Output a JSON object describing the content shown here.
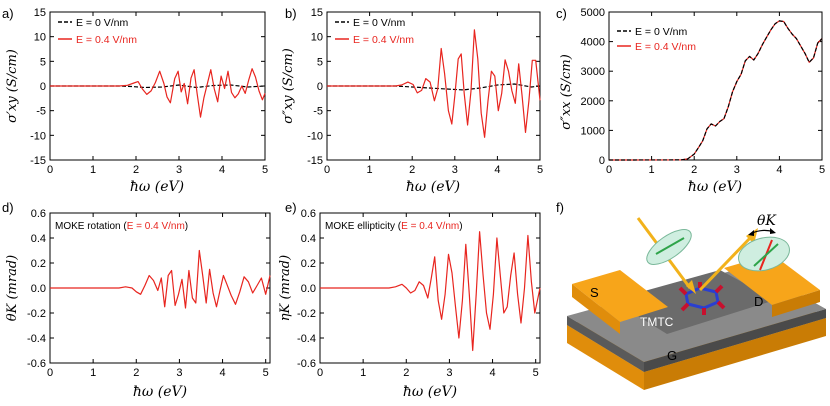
{
  "chart_data": [
    {
      "id": "a",
      "panel_label": "a)",
      "type": "line",
      "xlabel": "ħω (eV)",
      "ylabel": "σ′xy (S/cm)",
      "xlim": [
        0,
        5
      ],
      "ylim": [
        -15,
        15
      ],
      "xticks": [
        "0",
        "1",
        "2",
        "3",
        "4",
        "5"
      ],
      "yticks": [
        "-15",
        "-10",
        "-5",
        "0",
        "5",
        "10",
        "15"
      ],
      "legend": [
        "E = 0 V/nm",
        "E = 0.4 V/nm"
      ],
      "series": [
        {
          "name": "E = 0 V/nm",
          "color": "#000000",
          "dash": true,
          "x": [
            0,
            1.6,
            1.9,
            2.2,
            2.6,
            3.0,
            3.4,
            3.8,
            4.2,
            4.6,
            5.0
          ],
          "y": [
            0,
            0,
            -0.1,
            -0.3,
            -0.2,
            0.2,
            -0.3,
            0.1,
            0.2,
            -0.2,
            0
          ]
        },
        {
          "name": "E = 0.4 V/nm",
          "color": "#e8251f",
          "x": [
            0,
            1.6,
            1.8,
            1.95,
            2.05,
            2.15,
            2.25,
            2.35,
            2.45,
            2.55,
            2.65,
            2.72,
            2.8,
            2.9,
            2.98,
            3.05,
            3.12,
            3.2,
            3.28,
            3.35,
            3.42,
            3.5,
            3.58,
            3.66,
            3.74,
            3.82,
            3.9,
            3.98,
            4.06,
            4.14,
            4.22,
            4.3,
            4.38,
            4.46,
            4.54,
            4.62,
            4.7,
            4.78,
            4.86,
            4.94,
            5.0
          ],
          "y": [
            0,
            0,
            0.15,
            0.6,
            0.9,
            -0.6,
            -1.7,
            -1.0,
            0.7,
            3.0,
            0.5,
            -2.2,
            -3.4,
            1.5,
            3.0,
            -1.2,
            0.5,
            -3.6,
            1.6,
            3.3,
            -1.5,
            -6.3,
            -2.4,
            0.5,
            3.3,
            -0.6,
            -3.2,
            2.0,
            -0.5,
            3.0,
            -1.3,
            -2.4,
            -1.6,
            0.0,
            -1.5,
            1.2,
            3.5,
            1.8,
            -1.0,
            -2.8,
            -1.5
          ]
        }
      ]
    },
    {
      "id": "b",
      "panel_label": "b)",
      "type": "line",
      "xlabel": "ħω (eV)",
      "ylabel": "σ″xy (S/cm)",
      "xlim": [
        0,
        5
      ],
      "ylim": [
        -15,
        15
      ],
      "xticks": [
        "0",
        "1",
        "2",
        "3",
        "4",
        "5"
      ],
      "yticks": [
        "-15",
        "-10",
        "-5",
        "0",
        "5",
        "10",
        "15"
      ],
      "legend": [
        "E = 0 V/nm",
        "E = 0.4 V/nm"
      ],
      "series": [
        {
          "name": "E = 0 V/nm",
          "color": "#000000",
          "dash": true,
          "x": [
            0,
            1.6,
            2.0,
            2.4,
            2.8,
            3.2,
            3.6,
            4.0,
            4.4,
            4.8,
            5.0
          ],
          "y": [
            0,
            0,
            -0.2,
            -0.4,
            -0.6,
            -0.8,
            -0.4,
            0.2,
            0.4,
            -0.2,
            0
          ]
        },
        {
          "name": "E = 0.4 V/nm",
          "color": "#e8251f",
          "x": [
            0,
            1.6,
            1.75,
            1.9,
            2.02,
            2.12,
            2.22,
            2.32,
            2.42,
            2.52,
            2.6,
            2.68,
            2.76,
            2.85,
            2.93,
            3.0,
            3.08,
            3.15,
            3.22,
            3.3,
            3.38,
            3.46,
            3.54,
            3.62,
            3.7,
            3.78,
            3.86,
            3.94,
            4.02,
            4.1,
            4.18,
            4.26,
            4.34,
            4.42,
            4.5,
            4.58,
            4.66,
            4.74,
            4.82,
            4.9,
            5.0
          ],
          "y": [
            0,
            0,
            0.2,
            0.8,
            0.3,
            -1.4,
            -0.9,
            1.5,
            0.8,
            -3.0,
            -0.5,
            7.6,
            2.5,
            -5.0,
            -7.7,
            -2.0,
            5.5,
            6.5,
            -1.5,
            -7.9,
            -1.0,
            11.4,
            5.5,
            -5.5,
            -10.4,
            -3.0,
            3.0,
            2.0,
            -5.0,
            -1.5,
            5.3,
            3.0,
            -1.0,
            -3.5,
            4.5,
            -2.0,
            -9.4,
            -3.0,
            5.2,
            5.2,
            -2.9
          ]
        }
      ]
    },
    {
      "id": "c",
      "panel_label": "c)",
      "type": "line",
      "xlabel": "ħω (eV)",
      "ylabel": "σ″xx (S/cm)",
      "xlim": [
        0,
        5
      ],
      "ylim": [
        0,
        5000
      ],
      "xticks": [
        "0",
        "1",
        "2",
        "3",
        "4",
        "5"
      ],
      "yticks": [
        "0",
        "1000",
        "2000",
        "3000",
        "4000",
        "5000"
      ],
      "legend": [
        "E = 0 V/nm",
        "E = 0.4 V/nm"
      ],
      "series": [
        {
          "name": "E = 0.4 V/nm",
          "color": "#e8251f",
          "x": [
            0,
            1.7,
            1.85,
            2.0,
            2.1,
            2.2,
            2.3,
            2.4,
            2.5,
            2.6,
            2.7,
            2.8,
            2.9,
            3.0,
            3.1,
            3.2,
            3.3,
            3.4,
            3.5,
            3.6,
            3.7,
            3.8,
            3.9,
            4.0,
            4.1,
            4.2,
            4.3,
            4.4,
            4.5,
            4.6,
            4.7,
            4.8,
            4.9,
            5.0
          ],
          "y": [
            0,
            5,
            40,
            200,
            420,
            650,
            1050,
            1220,
            1150,
            1300,
            1400,
            1800,
            2300,
            2650,
            2900,
            3350,
            3500,
            3380,
            3600,
            3900,
            4150,
            4400,
            4600,
            4700,
            4680,
            4450,
            4250,
            4100,
            3850,
            3600,
            3300,
            3450,
            3950,
            4100
          ]
        },
        {
          "name": "E = 0 V/nm",
          "color": "#000000",
          "dash": true,
          "x": [
            0,
            1.7,
            1.85,
            2.0,
            2.1,
            2.2,
            2.3,
            2.4,
            2.5,
            2.6,
            2.7,
            2.8,
            2.9,
            3.0,
            3.1,
            3.2,
            3.3,
            3.4,
            3.5,
            3.6,
            3.7,
            3.8,
            3.9,
            4.0,
            4.1,
            4.2,
            4.3,
            4.4,
            4.5,
            4.6,
            4.7,
            4.8,
            4.9,
            5.0
          ],
          "y": [
            0,
            5,
            40,
            200,
            420,
            650,
            1050,
            1220,
            1150,
            1300,
            1400,
            1800,
            2300,
            2650,
            2900,
            3350,
            3500,
            3380,
            3600,
            3900,
            4150,
            4400,
            4600,
            4700,
            4680,
            4450,
            4250,
            4100,
            3850,
            3600,
            3300,
            3450,
            3950,
            4100
          ]
        }
      ]
    },
    {
      "id": "d",
      "panel_label": "d)",
      "type": "line",
      "xlabel": "ħω (eV)",
      "ylabel": "θK (mrad)",
      "xlim": [
        0,
        5.1
      ],
      "ylim": [
        -0.6,
        0.6
      ],
      "xticks": [
        "0",
        "1",
        "2",
        "3",
        "4",
        "5"
      ],
      "yticks": [
        "-0.6",
        "-0.4",
        "-0.2",
        "0.0",
        "0.2",
        "0.4",
        "0.6"
      ],
      "annotation": {
        "text": "MOKE rotation (",
        "highlight": "E = 0.4 V/nm",
        "close": ")"
      },
      "series": [
        {
          "name": "E = 0.4 V/nm",
          "color": "#e8251f",
          "x": [
            0,
            1.6,
            1.75,
            1.9,
            2.0,
            2.1,
            2.2,
            2.3,
            2.4,
            2.5,
            2.58,
            2.66,
            2.74,
            2.82,
            2.9,
            2.98,
            3.06,
            3.14,
            3.22,
            3.3,
            3.38,
            3.46,
            3.54,
            3.62,
            3.7,
            3.78,
            3.86,
            3.94,
            4.02,
            4.1,
            4.2,
            4.3,
            4.4,
            4.5,
            4.6,
            4.7,
            4.8,
            4.9,
            5.0,
            5.1
          ],
          "y": [
            0,
            0,
            0.01,
            0.0,
            -0.03,
            -0.05,
            0.02,
            0.1,
            0.06,
            -0.02,
            0.08,
            -0.15,
            0.1,
            0.14,
            -0.14,
            -0.05,
            0.07,
            -0.16,
            0.14,
            -0.08,
            -0.12,
            0.3,
            0.1,
            -0.12,
            0.15,
            -0.04,
            -0.15,
            -0.02,
            0.1,
            0.03,
            -0.06,
            -0.13,
            -0.03,
            0.09,
            0.05,
            -0.04,
            0.02,
            0.08,
            -0.05,
            0.1
          ]
        }
      ]
    },
    {
      "id": "e",
      "panel_label": "e)",
      "type": "line",
      "xlabel": "ħω (eV)",
      "ylabel": "ηK (mrad)",
      "xlim": [
        0,
        5.1
      ],
      "ylim": [
        -0.6,
        0.6
      ],
      "xticks": [
        "0",
        "1",
        "2",
        "3",
        "4",
        "5"
      ],
      "yticks": [
        "-0.6",
        "-0.4",
        "-0.2",
        "0.0",
        "0.2",
        "0.4",
        "0.6"
      ],
      "annotation": {
        "text": "MOKE ellipticity (",
        "highlight": "E = 0.4 V/nm",
        "close": ")"
      },
      "series": [
        {
          "name": "E = 0.4 V/nm",
          "color": "#e8251f",
          "x": [
            0,
            1.6,
            1.75,
            1.9,
            2.0,
            2.1,
            2.2,
            2.3,
            2.4,
            2.5,
            2.58,
            2.66,
            2.74,
            2.82,
            2.9,
            2.98,
            3.06,
            3.14,
            3.22,
            3.3,
            3.38,
            3.46,
            3.54,
            3.62,
            3.7,
            3.78,
            3.86,
            3.94,
            4.02,
            4.1,
            4.18,
            4.26,
            4.34,
            4.42,
            4.5,
            4.58,
            4.66,
            4.74,
            4.82,
            4.9,
            4.98,
            5.1
          ],
          "y": [
            0,
            0,
            0.01,
            0.03,
            0.0,
            -0.04,
            -0.02,
            0.05,
            0.02,
            -0.08,
            0.08,
            0.25,
            -0.1,
            -0.25,
            -0.05,
            0.27,
            0.12,
            -0.15,
            -0.4,
            -0.1,
            0.35,
            -0.05,
            -0.5,
            -0.05,
            0.45,
            0.1,
            -0.2,
            -0.33,
            -0.05,
            0.4,
            0.1,
            -0.2,
            -0.15,
            0.1,
            0.28,
            -0.05,
            -0.28,
            0.0,
            0.42,
            0.05,
            -0.2,
            0.0
          ]
        }
      ]
    }
  ],
  "diagram": {
    "panel_label": "f)",
    "source_label": "S",
    "drain_label": "D",
    "gate_label": "G",
    "molecule_label": "TMTC",
    "angle_label": "θK"
  },
  "colors": {
    "red": "#e8251f",
    "orange": "#f7a51a",
    "gray": "#6b6b6b",
    "yellow_arrow": "#f2b21b",
    "ellipse": "#cfeee0"
  }
}
